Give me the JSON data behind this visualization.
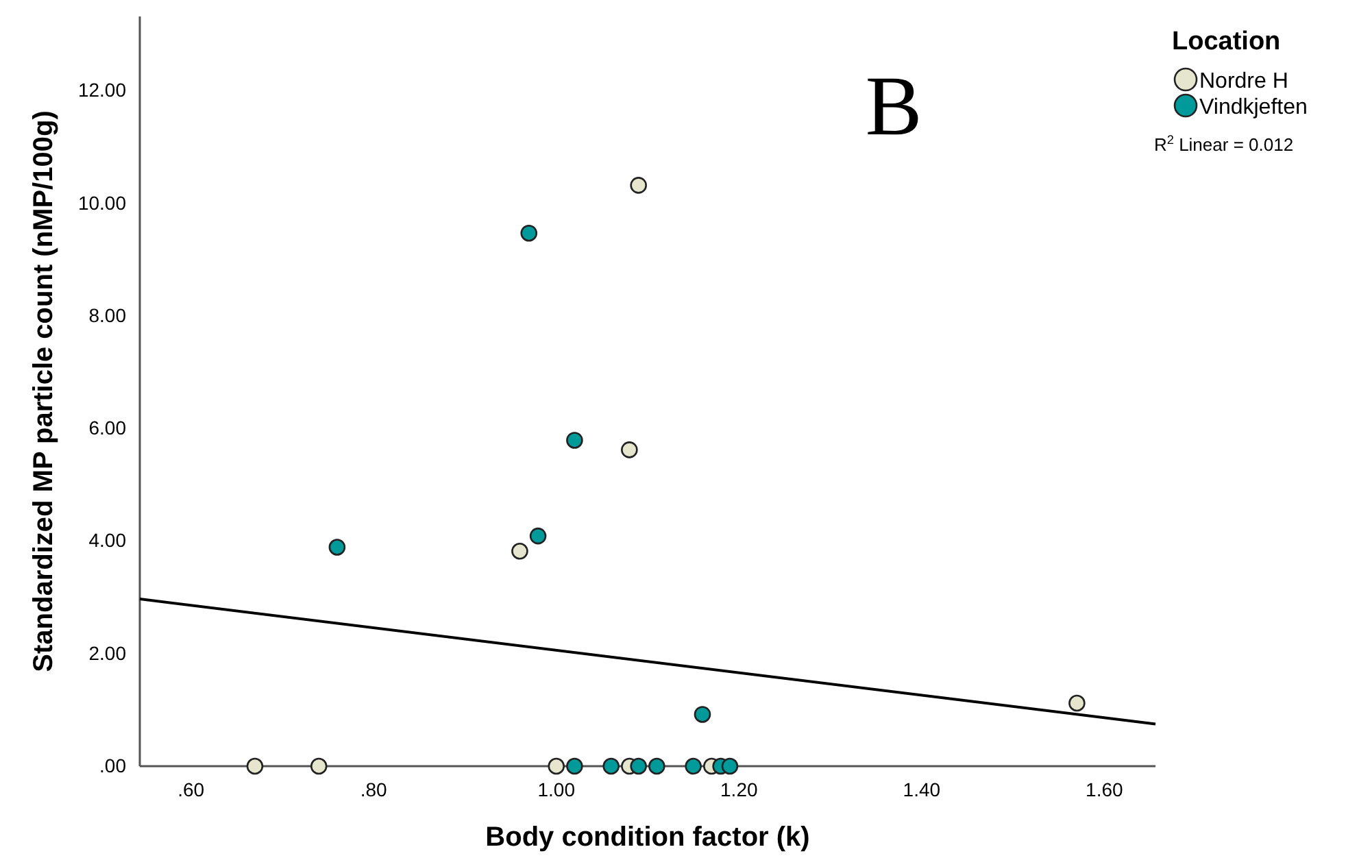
{
  "chart_data": {
    "type": "scatter",
    "xlabel": "Body condition factor (k)",
    "ylabel": "Standardized MP particle count (nMP/100g)",
    "legend_title": "Location",
    "legend": "top right",
    "grid": false,
    "annotations": [
      "B",
      "R$^{2}$ Linear = 0.012"
    ],
    "xlim": [
      0.544,
      1.656
    ],
    "ylim": [
      0,
      13.32
    ],
    "xticks": [
      {
        "value": 0.6,
        "label": ".60"
      },
      {
        "value": 0.8,
        "label": ".80"
      },
      {
        "value": 1.0,
        "label": "1.00"
      },
      {
        "value": 1.2,
        "label": "1.20"
      },
      {
        "value": 1.4,
        "label": "1.40"
      },
      {
        "value": 1.6,
        "label": "1.60"
      }
    ],
    "yticks": [
      {
        "value": 0,
        "label": ".00"
      },
      {
        "value": 2,
        "label": "2.00"
      },
      {
        "value": 4,
        "label": "4.00"
      },
      {
        "value": 6,
        "label": "6.00"
      },
      {
        "value": 8,
        "label": "8.00"
      },
      {
        "value": 10,
        "label": "10.00"
      },
      {
        "value": 12,
        "label": "12.00"
      }
    ],
    "series": [
      {
        "type": "line",
        "marker": "none",
        "color": "#000000",
        "x": [
          0.544,
          1.656
        ],
        "values": [
          2.97,
          0.75
        ]
      },
      {
        "name": "Nordre H",
        "marker": "circle",
        "color": "#e6e6cf",
        "x": [
          1.09,
          1.08,
          0.96,
          1.57,
          0.67,
          0.74,
          1.0,
          1.08,
          1.17
        ],
        "values": [
          10.32,
          5.62,
          3.82,
          1.12,
          0,
          0,
          0,
          0,
          0
        ]
      },
      {
        "name": "Vindkjeften",
        "marker": "circle",
        "color": "#009a9a",
        "x": [
          0.97,
          1.02,
          0.98,
          0.76,
          1.16,
          1.02,
          1.06,
          1.09,
          1.11,
          1.15,
          1.18,
          1.19
        ],
        "values": [
          9.47,
          5.79,
          4.09,
          3.89,
          0.92,
          0,
          0,
          0,
          0,
          0,
          0,
          0
        ]
      }
    ]
  }
}
